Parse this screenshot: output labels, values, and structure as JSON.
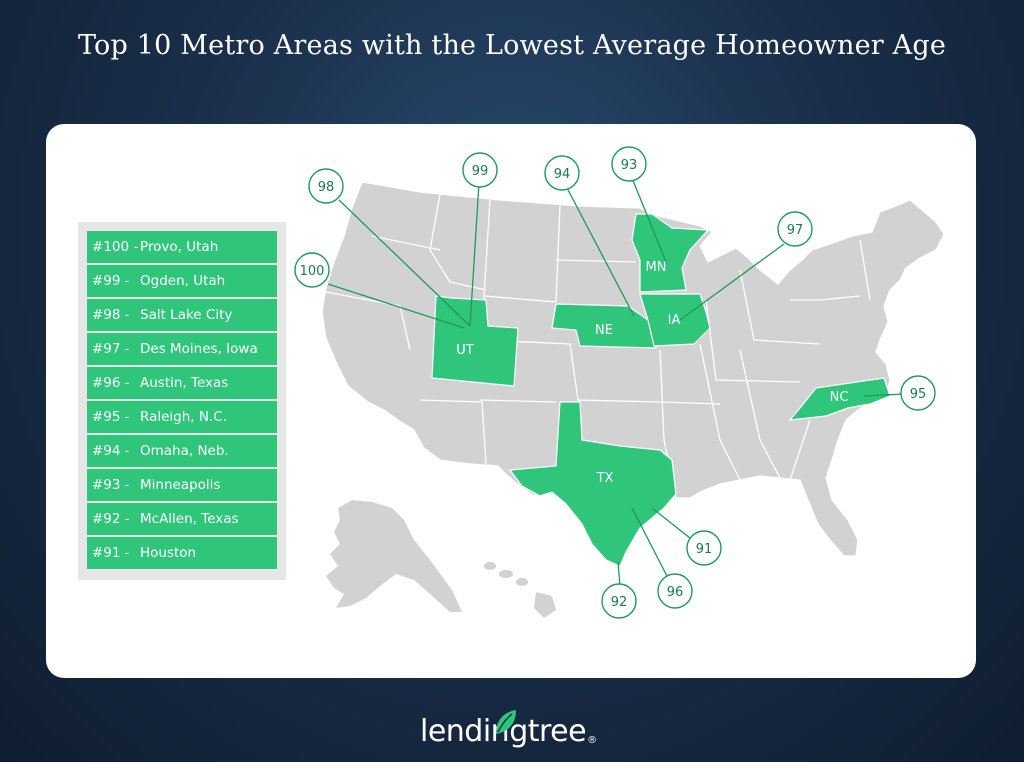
{
  "title": "Top 10 Metro Areas with the Lowest Average Homeowner Age",
  "legend": [
    {
      "rank": "#100 -",
      "name": "Provo, Utah"
    },
    {
      "rank": "#99 -",
      "name": "Ogden, Utah"
    },
    {
      "rank": "#98 -",
      "name": "Salt Lake City"
    },
    {
      "rank": "#97 -",
      "name": "Des Moines, Iowa"
    },
    {
      "rank": "#96 -",
      "name": "Austin, Texas"
    },
    {
      "rank": "#95 -",
      "name": "Raleigh, N.C."
    },
    {
      "rank": "#94 -",
      "name": "Omaha, Neb."
    },
    {
      "rank": "#93 -",
      "name": "Minneapolis"
    },
    {
      "rank": "#92 -",
      "name": "McAllen, Texas"
    },
    {
      "rank": "#91 -",
      "name": "Houston"
    }
  ],
  "states": {
    "ut": "UT",
    "ne": "NE",
    "mn": "MN",
    "ia": "IA",
    "nc": "NC",
    "tx": "TX"
  },
  "callouts": {
    "c100": "100",
    "c99": "99",
    "c98": "98",
    "c97": "97",
    "c96": "96",
    "c95": "95",
    "c94": "94",
    "c93": "93",
    "c92": "92",
    "c91": "91"
  },
  "logo": {
    "text": "lendingtree",
    "reg": "®"
  },
  "colors": {
    "highlight": "#2fc57a",
    "state": "#d2d2d2",
    "callout_stroke": "#1e9a5a"
  }
}
